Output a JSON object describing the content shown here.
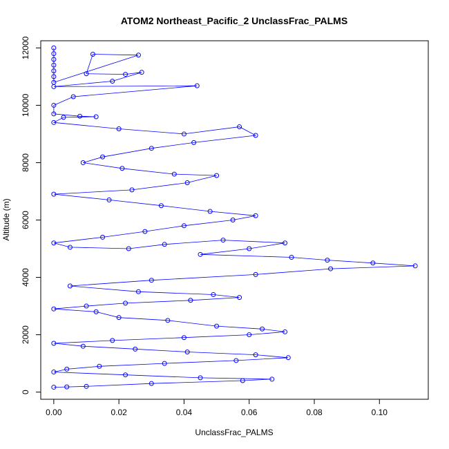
{
  "chart_data": {
    "type": "scatter",
    "title": "ATOM2 Northeast_Pacific_2 UnclassFrac_PALMS",
    "xlabel": "UnclassFrac_PALMS",
    "ylabel": "Altitude (m)",
    "xlim": [
      -0.004,
      0.115
    ],
    "ylim": [
      -250,
      12250
    ],
    "x_ticks": [
      0.0,
      0.02,
      0.04,
      0.06,
      0.08,
      0.1
    ],
    "x_tick_labels": [
      "0.00",
      "0.02",
      "0.04",
      "0.06",
      "0.08",
      "0.10"
    ],
    "y_ticks": [
      0,
      2000,
      4000,
      6000,
      8000,
      10000,
      12000
    ],
    "y_tick_labels": [
      "0",
      "2000",
      "4000",
      "6000",
      "8000",
      "10000",
      "12000"
    ],
    "grid": false,
    "legend": "none",
    "marker": "open-circle",
    "connected": true,
    "color": "#0000FF",
    "series": [
      {
        "x": [
          0.0,
          0.0,
          0.0,
          0.0,
          0.0,
          0.0,
          0.0,
          0.026,
          0.012,
          0.01,
          0.022,
          0.027,
          0.018,
          0.0,
          0.044,
          0.006,
          0.0,
          0.0,
          0.008,
          0.013,
          0.003,
          0.0,
          0.02,
          0.04,
          0.057,
          0.062,
          0.043,
          0.03,
          0.015,
          0.009,
          0.021,
          0.037,
          0.05,
          0.041,
          0.024,
          0.0,
          0.017,
          0.033,
          0.048,
          0.062,
          0.055,
          0.04,
          0.028,
          0.015,
          0.0,
          0.005,
          0.023,
          0.034,
          0.052,
          0.071,
          0.06,
          0.045,
          0.073,
          0.084,
          0.098,
          0.111,
          0.085,
          0.062,
          0.03,
          0.005,
          0.026,
          0.049,
          0.057,
          0.042,
          0.022,
          0.01,
          0.0,
          0.013,
          0.02,
          0.035,
          0.05,
          0.064,
          0.071,
          0.06,
          0.04,
          0.018,
          0.0,
          0.009,
          0.025,
          0.041,
          0.062,
          0.072,
          0.056,
          0.034,
          0.014,
          0.004,
          0.0,
          0.022,
          0.045,
          0.067,
          0.058,
          0.03,
          0.01,
          0.004,
          0.0
        ],
        "y": [
          12000,
          11800,
          11600,
          11400,
          11200,
          11000,
          10800,
          11750,
          11780,
          11100,
          11080,
          11150,
          10840,
          10650,
          10680,
          10300,
          10000,
          9700,
          9620,
          9600,
          9580,
          9400,
          9180,
          9000,
          9250,
          8950,
          8700,
          8500,
          8200,
          8000,
          7800,
          7600,
          7550,
          7300,
          7050,
          6900,
          6700,
          6500,
          6300,
          6150,
          6000,
          5800,
          5600,
          5400,
          5200,
          5050,
          5000,
          5150,
          5300,
          5200,
          5000,
          4800,
          4700,
          4600,
          4500,
          4400,
          4300,
          4100,
          3900,
          3700,
          3500,
          3400,
          3300,
          3200,
          3100,
          3000,
          2900,
          2800,
          2600,
          2500,
          2300,
          2200,
          2100,
          2000,
          1900,
          1800,
          1700,
          1600,
          1500,
          1400,
          1300,
          1200,
          1100,
          1000,
          900,
          800,
          700,
          600,
          500,
          450,
          400,
          300,
          200,
          180,
          170
        ]
      }
    ]
  }
}
